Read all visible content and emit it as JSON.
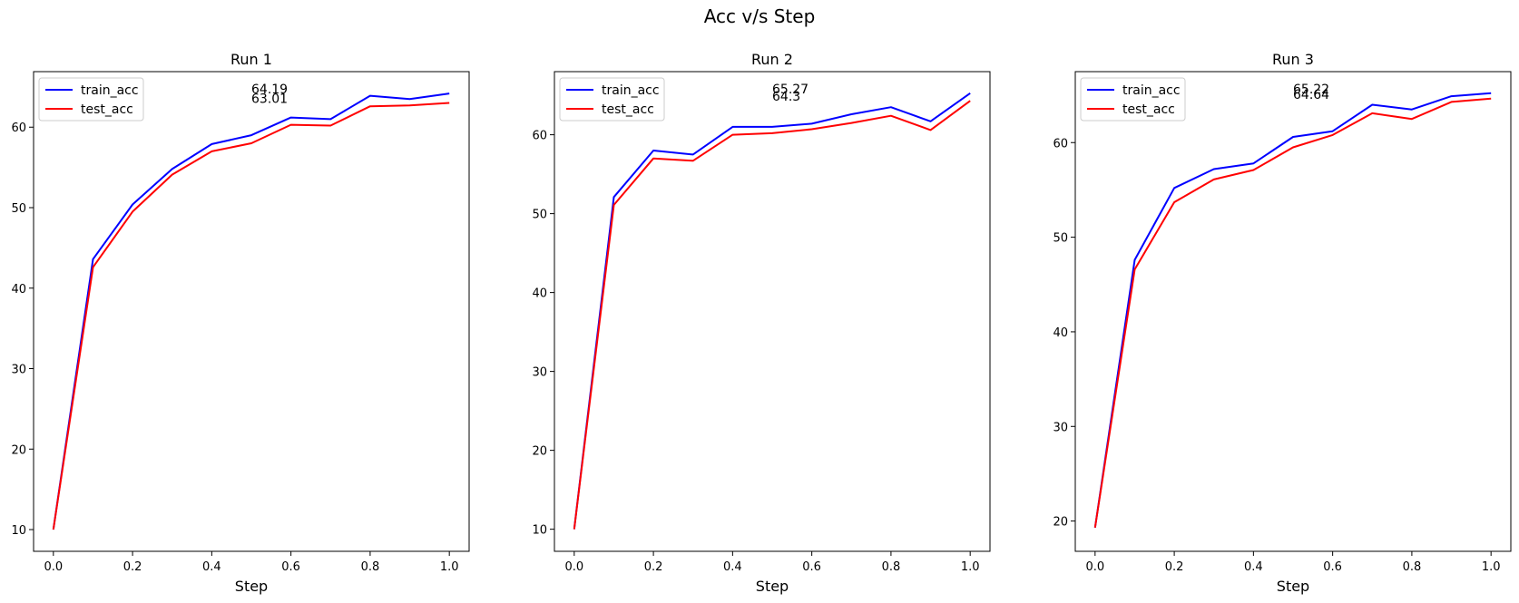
{
  "figure": {
    "title": "Acc v/s Step"
  },
  "chart_data": [
    {
      "type": "line",
      "title": "Run 1",
      "xlabel": "Step",
      "ylabel": "",
      "x": [
        0.0,
        0.1,
        0.2,
        0.3,
        0.4,
        0.5,
        0.6,
        0.7,
        0.8,
        0.9,
        1.0
      ],
      "xticks": [
        "0.0",
        "0.2",
        "0.4",
        "0.6",
        "0.8",
        "1.0"
      ],
      "yticks": [
        10,
        20,
        30,
        40,
        50,
        60
      ],
      "xlim": [
        -0.05,
        1.05
      ],
      "ylim": [
        7.3,
        66.9
      ],
      "legend": "upper left",
      "series": [
        {
          "name": "train_acc",
          "color": "#0000ff",
          "values": [
            10.0,
            43.6,
            50.4,
            54.8,
            57.9,
            59.0,
            61.2,
            61.0,
            63.9,
            63.5,
            64.19
          ]
        },
        {
          "name": "test_acc",
          "color": "#ff0000",
          "values": [
            10.0,
            42.6,
            49.5,
            54.1,
            57.0,
            58.0,
            60.3,
            60.2,
            62.6,
            62.7,
            63.01
          ]
        }
      ],
      "annotations": [
        {
          "text": "64.19",
          "x": 0.5,
          "y": 64.19
        },
        {
          "text": "63.01",
          "x": 0.5,
          "y": 63.01
        }
      ]
    },
    {
      "type": "line",
      "title": "Run 2",
      "xlabel": "Step",
      "ylabel": "",
      "x": [
        0.0,
        0.1,
        0.2,
        0.3,
        0.4,
        0.5,
        0.6,
        0.7,
        0.8,
        0.9,
        1.0
      ],
      "xticks": [
        "0.0",
        "0.2",
        "0.4",
        "0.6",
        "0.8",
        "1.0"
      ],
      "yticks": [
        10,
        20,
        30,
        40,
        50,
        60
      ],
      "xlim": [
        -0.05,
        1.05
      ],
      "ylim": [
        7.2,
        68.0
      ],
      "legend": "upper left",
      "series": [
        {
          "name": "train_acc",
          "color": "#0000ff",
          "values": [
            10.0,
            52.1,
            58.0,
            57.5,
            61.0,
            61.0,
            61.4,
            62.6,
            63.5,
            61.7,
            65.27
          ]
        },
        {
          "name": "test_acc",
          "color": "#ff0000",
          "values": [
            10.0,
            51.1,
            57.0,
            56.7,
            60.0,
            60.2,
            60.7,
            61.5,
            62.4,
            60.6,
            64.3
          ]
        }
      ],
      "annotations": [
        {
          "text": "65.27",
          "x": 0.5,
          "y": 65.27
        },
        {
          "text": "64.3",
          "x": 0.5,
          "y": 64.3
        }
      ]
    },
    {
      "type": "line",
      "title": "Run 3",
      "xlabel": "Step",
      "ylabel": "",
      "x": [
        0.0,
        0.1,
        0.2,
        0.3,
        0.4,
        0.5,
        0.6,
        0.7,
        0.8,
        0.9,
        1.0
      ],
      "xticks": [
        "0.0",
        "0.2",
        "0.4",
        "0.6",
        "0.8",
        "1.0"
      ],
      "yticks": [
        20,
        30,
        40,
        50,
        60
      ],
      "xlim": [
        -0.05,
        1.05
      ],
      "ylim": [
        16.8,
        67.5
      ],
      "legend": "upper left",
      "series": [
        {
          "name": "train_acc",
          "color": "#0000ff",
          "values": [
            19.3,
            47.6,
            55.2,
            57.2,
            57.8,
            60.6,
            61.2,
            64.0,
            63.5,
            64.9,
            65.22
          ]
        },
        {
          "name": "test_acc",
          "color": "#ff0000",
          "values": [
            19.3,
            46.6,
            53.7,
            56.1,
            57.1,
            59.5,
            60.8,
            63.1,
            62.5,
            64.3,
            64.64
          ]
        }
      ],
      "annotations": [
        {
          "text": "65.22",
          "x": 0.5,
          "y": 65.22
        },
        {
          "text": "64.64",
          "x": 0.5,
          "y": 64.64
        }
      ]
    }
  ]
}
